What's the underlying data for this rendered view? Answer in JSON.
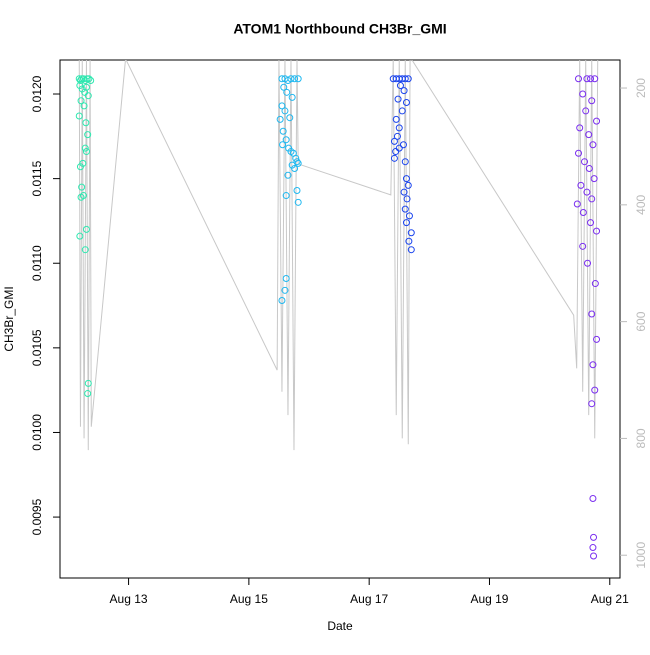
{
  "chart_data": {
    "type": "scatter",
    "title": "ATOM1 Northbound CH3Br_GMI",
    "x_label": "Date",
    "y_label": "CH3Br_GMI",
    "xlim": [
      11.86,
      21.17
    ],
    "xticks": [
      {
        "value": 13,
        "label": "Aug 13"
      },
      {
        "value": 15,
        "label": "Aug 15"
      },
      {
        "value": 17,
        "label": "Aug 17"
      },
      {
        "value": 19,
        "label": "Aug 19"
      },
      {
        "value": 21,
        "label": "Aug 21"
      }
    ],
    "ylim": [
      0.00914,
      0.012201
    ],
    "yticks": [
      {
        "value": 0.0095,
        "label": "0.0095"
      },
      {
        "value": 0.01,
        "label": "0.0100"
      },
      {
        "value": 0.0105,
        "label": "0.0105"
      },
      {
        "value": 0.011,
        "label": "0.0110"
      },
      {
        "value": 0.0115,
        "label": "0.0115"
      },
      {
        "value": 0.012,
        "label": "0.0120"
      }
    ],
    "y2lim": [
      1039,
      152
    ],
    "y2ticks": [
      200,
      400,
      600,
      800,
      1000
    ],
    "y2_color": "#bbbbbb",
    "series": [
      {
        "color": "#2ee8b0",
        "x": [
          12.18,
          12.2,
          12.22,
          12.25,
          12.28,
          12.31,
          12.34,
          12.37,
          12.19,
          12.23,
          12.27,
          12.3,
          12.33,
          12.21,
          12.26,
          12.18,
          12.29,
          12.32,
          12.28,
          12.3,
          12.24,
          12.2,
          12.22,
          12.25,
          12.21,
          12.3,
          12.19,
          12.28,
          12.33,
          12.32
        ],
        "values": [
          0.01209,
          0.01208,
          0.01209,
          0.01209,
          0.01208,
          0.01209,
          0.01209,
          0.01208,
          0.01205,
          0.01203,
          0.01201,
          0.01204,
          0.01199,
          0.01196,
          0.01193,
          0.01187,
          0.01183,
          0.01176,
          0.01168,
          0.01166,
          0.01159,
          0.01157,
          0.01145,
          0.0114,
          0.01139,
          0.0112,
          0.01116,
          0.01108,
          0.01029,
          0.01023
        ]
      },
      {
        "color": "#1fb8f0",
        "x": [
          15.55,
          15.6,
          15.65,
          15.7,
          15.76,
          15.82,
          15.58,
          15.63,
          15.72,
          15.55,
          15.6,
          15.68,
          15.52,
          15.57,
          15.62,
          15.56,
          15.66,
          15.7,
          15.74,
          15.78,
          15.8,
          15.72,
          15.76,
          15.82,
          15.65,
          15.8,
          15.62,
          15.82,
          15.62,
          15.6,
          15.55
        ],
        "values": [
          0.01209,
          0.01209,
          0.01208,
          0.01209,
          0.01209,
          0.01209,
          0.01204,
          0.01201,
          0.01198,
          0.01193,
          0.0119,
          0.01186,
          0.01185,
          0.01178,
          0.01173,
          0.0117,
          0.01168,
          0.01166,
          0.01165,
          0.01162,
          0.0116,
          0.01158,
          0.01156,
          0.01159,
          0.01152,
          0.01143,
          0.0114,
          0.01136,
          0.01091,
          0.01084,
          0.01078
        ]
      },
      {
        "color": "#1a44ee",
        "x": [
          17.4,
          17.45,
          17.5,
          17.55,
          17.6,
          17.65,
          17.52,
          17.58,
          17.48,
          17.62,
          17.55,
          17.45,
          17.5,
          17.47,
          17.42,
          17.44,
          17.5,
          17.57,
          17.42,
          17.6,
          17.62,
          17.65,
          17.58,
          17.63,
          17.6,
          17.67,
          17.62,
          17.7,
          17.66,
          17.7
        ],
        "values": [
          0.01209,
          0.01209,
          0.01209,
          0.01209,
          0.01209,
          0.01209,
          0.01205,
          0.01202,
          0.01197,
          0.01195,
          0.0119,
          0.01185,
          0.0118,
          0.01175,
          0.01172,
          0.01166,
          0.01168,
          0.0117,
          0.01162,
          0.0116,
          0.0115,
          0.01146,
          0.01142,
          0.01138,
          0.01132,
          0.01128,
          0.01124,
          0.01118,
          0.01113,
          0.01108
        ]
      },
      {
        "color": "#7a2ef0",
        "x": [
          20.48,
          20.62,
          20.68,
          20.75,
          20.55,
          20.7,
          20.6,
          20.78,
          20.5,
          20.65,
          20.72,
          20.48,
          20.58,
          20.66,
          20.74,
          20.52,
          20.62,
          20.7,
          20.46,
          20.56,
          20.68,
          20.78,
          20.55,
          20.63,
          20.76,
          20.7,
          20.78,
          20.72,
          20.75,
          20.7,
          20.72,
          20.73,
          20.72,
          20.73
        ],
        "values": [
          0.01209,
          0.01209,
          0.01209,
          0.01209,
          0.012,
          0.01196,
          0.0119,
          0.01184,
          0.0118,
          0.01176,
          0.0117,
          0.01165,
          0.0116,
          0.01156,
          0.0115,
          0.01146,
          0.01142,
          0.01138,
          0.01135,
          0.0113,
          0.01124,
          0.01119,
          0.0111,
          0.011,
          0.01088,
          0.0107,
          0.01055,
          0.0104,
          0.01025,
          0.01017,
          0.00961,
          0.00938,
          0.00932,
          0.00927
        ]
      },
      {
        "type": "line",
        "axis": "y2",
        "color": "#c8c8c8",
        "x": [
          12.18,
          12.2,
          12.23,
          12.26,
          12.3,
          12.33,
          12.36,
          12.38,
          12.95,
          15.47,
          15.5,
          15.55,
          15.6,
          15.65,
          15.7,
          15.75,
          15.8,
          15.82,
          17.36,
          17.4,
          17.45,
          17.5,
          17.55,
          17.6,
          17.65,
          17.68,
          17.7,
          20.4,
          20.45,
          20.5,
          20.55,
          20.6,
          20.65,
          20.7,
          20.75,
          20.8
        ],
        "values": [
          150,
          780,
          150,
          800,
          150,
          820,
          150,
          780,
          150,
          683,
          150,
          720,
          150,
          760,
          150,
          820,
          150,
          330,
          383,
          150,
          760,
          150,
          800,
          150,
          810,
          150,
          150,
          589,
          680,
          150,
          720,
          150,
          760,
          150,
          800,
          150
        ]
      }
    ]
  }
}
